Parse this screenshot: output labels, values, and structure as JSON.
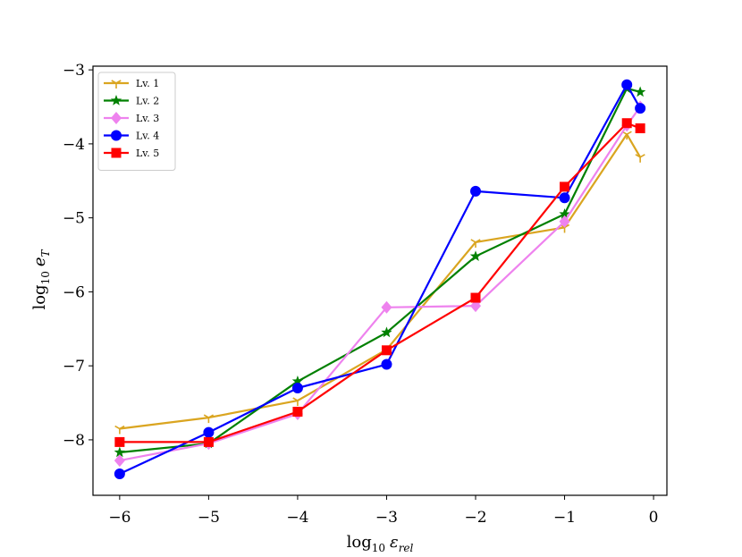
{
  "chart_data": {
    "type": "line",
    "xlabel": "log₁₀ ε_rel",
    "xlabel_base": "log",
    "xlabel_sub": "10",
    "xlabel_var": "ε",
    "xlabel_var_sub": "rel",
    "ylabel_base": "log",
    "ylabel_sub": "10",
    "ylabel_var": "e",
    "ylabel_var_sub": "T",
    "xlim": [
      -6.3,
      0.15
    ],
    "ylim": [
      -8.75,
      -2.95
    ],
    "xticks": [
      -6,
      -5,
      -4,
      -3,
      -2,
      -1,
      0
    ],
    "xtick_labels": [
      "−6",
      "−5",
      "−4",
      "−3",
      "−2",
      "−1",
      "0"
    ],
    "yticks": [
      -8,
      -7,
      -6,
      -5,
      -4,
      -3
    ],
    "ytick_labels": [
      "−8",
      "−7",
      "−6",
      "−5",
      "−4",
      "−3"
    ],
    "legend_position": "top-left",
    "x": [
      -6,
      -5,
      -4,
      -3,
      -2,
      -1,
      -0.3,
      -0.15
    ],
    "series": [
      {
        "name": "Lv. 1",
        "color": "#daa520",
        "marker": "tri-down",
        "values": [
          -7.85,
          -7.7,
          -7.47,
          -6.78,
          -5.33,
          -5.13,
          -3.87,
          -4.18
        ]
      },
      {
        "name": "Lv. 2",
        "color": "#008000",
        "marker": "star",
        "values": [
          -8.17,
          -8.05,
          -7.21,
          -6.55,
          -5.52,
          -4.95,
          -3.25,
          -3.3
        ]
      },
      {
        "name": "Lv. 3",
        "color": "#ee82ee",
        "marker": "diamond",
        "values": [
          -8.28,
          -8.05,
          -7.65,
          -6.21,
          -6.19,
          -5.05,
          -3.75,
          -3.5
        ]
      },
      {
        "name": "Lv. 4",
        "color": "#0000ff",
        "marker": "circle",
        "values": [
          -8.46,
          -7.9,
          -7.3,
          -6.98,
          -4.64,
          -4.73,
          -3.2,
          -3.52
        ]
      },
      {
        "name": "Lv. 5",
        "color": "#ff0000",
        "marker": "square",
        "values": [
          -8.03,
          -8.03,
          -7.62,
          -6.79,
          -6.08,
          -4.58,
          -3.72,
          -3.79
        ]
      }
    ]
  }
}
